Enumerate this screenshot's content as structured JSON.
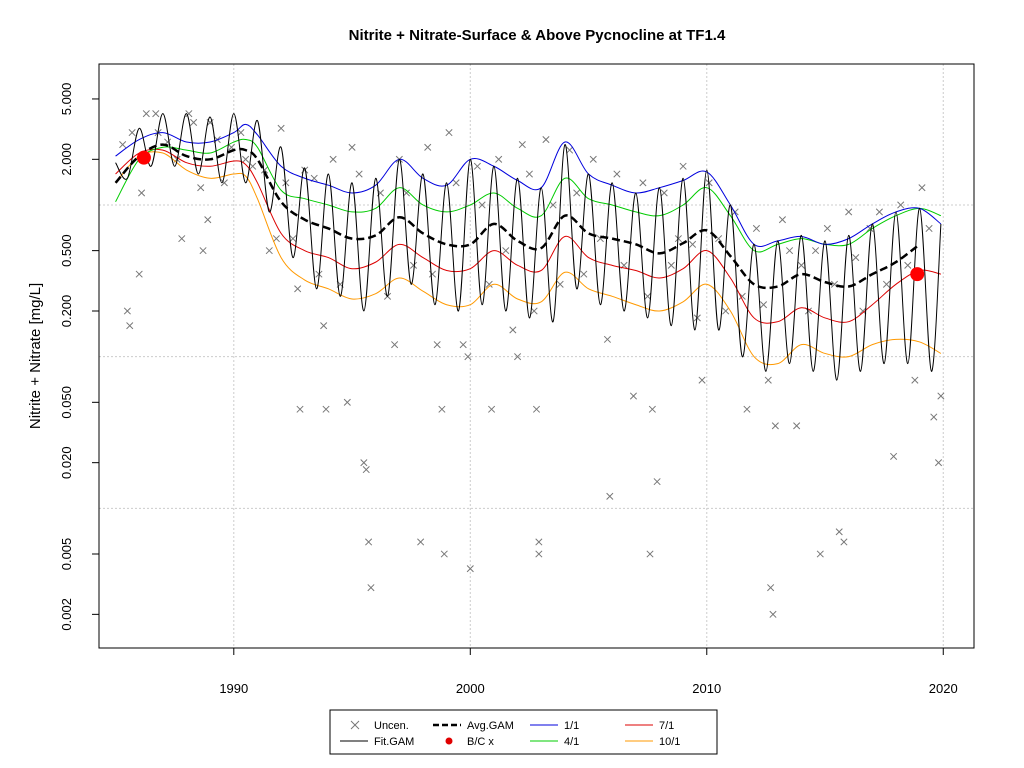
{
  "chart_data": {
    "type": "scatter",
    "title": "Nitrite + Nitrate-Surface & Above Pycnocline at TF1.4",
    "xlabel": "",
    "ylabel": "Nitrite + Nitrate [mg/L]",
    "xlim": [
      1984.3,
      2021.3
    ],
    "ylim": [
      0.0012,
      8.5
    ],
    "y_scale": "log",
    "x_ticks": [
      1990,
      2000,
      2010,
      2020
    ],
    "x_tick_labels": [
      "1990",
      "2000",
      "2010",
      "2020"
    ],
    "y_ticks": [
      0.002,
      0.005,
      0.02,
      0.05,
      0.2,
      0.5,
      2,
      5
    ],
    "y_tick_labels": [
      "0.002",
      "0.005",
      "0.020",
      "0.050",
      "0.200",
      "0.500",
      "2.000",
      "5.000"
    ],
    "grid": true,
    "grid_x": [
      1990,
      2000,
      2010,
      2020
    ],
    "grid_y": [
      0.01,
      0.1,
      1
    ],
    "legend_position": "bottom",
    "legend": [
      {
        "label": "Uncen.",
        "kind": "cross",
        "color": "#777777"
      },
      {
        "label": "Fit.GAM",
        "kind": "line",
        "color": "#000000"
      },
      {
        "label": "Avg.GAM",
        "kind": "dashed",
        "color": "#000000"
      },
      {
        "label": "B/C x",
        "kind": "dot",
        "color": "#e00000"
      },
      {
        "label": "1/1",
        "kind": "line",
        "color": "#0000dd"
      },
      {
        "label": "4/1",
        "kind": "line",
        "color": "#00cc00"
      },
      {
        "label": "7/1",
        "kind": "line",
        "color": "#dd0000"
      },
      {
        "label": "10/1",
        "kind": "line",
        "color": "#ff9900"
      }
    ],
    "colors": {
      "points": "#777777",
      "fit": "#000000",
      "avg": "#000000",
      "bc": "#ff0000",
      "jan": "#0000dd",
      "apr": "#00cc00",
      "jul": "#dd0000",
      "oct": "#ff9900",
      "grid": "#cccccc"
    },
    "x_range_series": [
      1985.0,
      2019.9
    ],
    "series": [
      {
        "name": "Avg.GAM",
        "x": [
          1985.0,
          1986.0,
          1987.0,
          1988.0,
          1989.0,
          1990.0,
          1990.5,
          1991.0,
          1992.0,
          1993.0,
          1994.0,
          1995.0,
          1996.0,
          1997.0,
          1998.0,
          1999.0,
          2000.0,
          2001.0,
          2002.0,
          2003.0,
          2004.0,
          2005.0,
          2006.0,
          2007.0,
          2008.0,
          2009.0,
          2010.0,
          2011.0,
          2012.0,
          2013.0,
          2014.0,
          2015.0,
          2016.0,
          2017.0,
          2018.0,
          2019.0
        ],
        "y": [
          1.4,
          2.1,
          2.5,
          2.1,
          2.0,
          2.3,
          2.3,
          2.0,
          1.05,
          0.8,
          0.7,
          0.6,
          0.63,
          0.83,
          0.65,
          0.55,
          0.55,
          0.75,
          0.58,
          0.52,
          0.85,
          0.65,
          0.6,
          0.55,
          0.48,
          0.56,
          0.68,
          0.46,
          0.3,
          0.29,
          0.35,
          0.31,
          0.29,
          0.35,
          0.42,
          0.55
        ]
      },
      {
        "name": "1/1",
        "x": [
          1985.0,
          1986.0,
          1987.0,
          1988.0,
          1989.0,
          1990.0,
          1990.5,
          1991.0,
          1992.0,
          1993.0,
          1994.0,
          1995.0,
          1996.0,
          1997.0,
          1998.0,
          1999.0,
          2000.0,
          2001.0,
          2002.0,
          2003.0,
          2004.0,
          2005.0,
          2006.0,
          2007.0,
          2008.0,
          2009.0,
          2010.0,
          2011.0,
          2012.0,
          2013.0,
          2014.0,
          2015.0,
          2016.0,
          2017.0,
          2018.0,
          2019.0,
          2019.9
        ],
        "y": [
          2.1,
          2.7,
          3.0,
          2.6,
          2.6,
          3.0,
          3.4,
          2.9,
          1.8,
          1.5,
          1.35,
          1.2,
          1.35,
          2.0,
          1.5,
          1.35,
          2.0,
          1.8,
          1.45,
          1.3,
          2.6,
          1.6,
          1.35,
          1.2,
          1.3,
          1.45,
          1.65,
          1.0,
          0.55,
          0.58,
          0.62,
          0.55,
          0.6,
          0.75,
          0.9,
          0.95,
          0.75
        ]
      },
      {
        "name": "4/1",
        "x": [
          1985.0,
          1986.0,
          1987.0,
          1988.0,
          1989.0,
          1990.0,
          1990.5,
          1991.0,
          1992.0,
          1993.0,
          1994.0,
          1995.0,
          1996.0,
          1997.0,
          1998.0,
          1999.0,
          2000.0,
          2001.0,
          2002.0,
          2003.0,
          2004.0,
          2005.0,
          2006.0,
          2007.0,
          2008.0,
          2009.0,
          2010.0,
          2011.0,
          2012.0,
          2013.0,
          2014.0,
          2015.0,
          2016.0,
          2017.0,
          2018.0,
          2019.0,
          2019.9
        ],
        "y": [
          1.05,
          2.0,
          2.4,
          2.3,
          2.2,
          2.6,
          2.7,
          2.4,
          1.25,
          1.1,
          1.0,
          0.9,
          0.95,
          1.3,
          1.0,
          0.9,
          1.0,
          1.2,
          0.95,
          0.85,
          1.5,
          1.1,
          1.0,
          0.9,
          0.85,
          1.0,
          1.3,
          0.85,
          0.5,
          0.55,
          0.6,
          0.55,
          0.55,
          0.7,
          0.85,
          0.95,
          0.85
        ]
      },
      {
        "name": "7/1",
        "x": [
          1985.0,
          1986.0,
          1987.0,
          1988.0,
          1989.0,
          1990.0,
          1990.5,
          1991.0,
          1992.0,
          1993.0,
          1994.0,
          1995.0,
          1996.0,
          1997.0,
          1998.0,
          1999.0,
          2000.0,
          2001.0,
          2002.0,
          2003.0,
          2004.0,
          2005.0,
          2006.0,
          2007.0,
          2008.0,
          2009.0,
          2010.0,
          2011.0,
          2012.0,
          2013.0,
          2014.0,
          2015.0,
          2016.0,
          2017.0,
          2018.0,
          2019.0,
          2019.9
        ],
        "y": [
          1.6,
          2.2,
          2.3,
          1.9,
          1.8,
          1.95,
          1.85,
          1.4,
          0.65,
          0.5,
          0.45,
          0.38,
          0.42,
          0.55,
          0.45,
          0.37,
          0.38,
          0.5,
          0.4,
          0.37,
          0.62,
          0.45,
          0.4,
          0.37,
          0.33,
          0.38,
          0.5,
          0.33,
          0.18,
          0.17,
          0.21,
          0.18,
          0.17,
          0.22,
          0.3,
          0.37,
          0.35
        ]
      },
      {
        "name": "10/1",
        "x": [
          1985.0,
          1986.0,
          1987.0,
          1988.0,
          1989.0,
          1990.0,
          1990.5,
          1991.0,
          1992.0,
          1993.0,
          1994.0,
          1995.0,
          1996.0,
          1997.0,
          1998.0,
          1999.0,
          2000.0,
          2001.0,
          2002.0,
          2003.0,
          2004.0,
          2005.0,
          2006.0,
          2007.0,
          2008.0,
          2009.0,
          2010.0,
          2011.0,
          2012.0,
          2013.0,
          2014.0,
          2015.0,
          2016.0,
          2017.0,
          2018.0,
          2019.0,
          2019.9
        ],
        "y": [
          1.4,
          2.1,
          2.2,
          1.7,
          1.5,
          1.6,
          1.55,
          1.1,
          0.45,
          0.32,
          0.28,
          0.24,
          0.26,
          0.33,
          0.27,
          0.22,
          0.22,
          0.3,
          0.24,
          0.23,
          0.36,
          0.28,
          0.25,
          0.22,
          0.2,
          0.23,
          0.3,
          0.2,
          0.1,
          0.09,
          0.12,
          0.105,
          0.1,
          0.12,
          0.13,
          0.125,
          0.105
        ]
      },
      {
        "name": "Fit.GAM",
        "amplitude_note": "seasonal",
        "x": [
          1985.0,
          1985.5,
          1986.0,
          1986.5,
          1987.0,
          1987.5,
          1988.0,
          1988.5,
          1989.0,
          1989.5,
          1990.0,
          1990.5,
          1991.0,
          1991.5,
          1992.0,
          1992.5,
          1993.0,
          1993.5,
          1994.0,
          1994.5,
          1995.0,
          1995.5,
          1996.0,
          1996.5,
          1997.0,
          1997.5,
          1998.0,
          1998.5,
          1999.0,
          1999.5,
          2000.0,
          2000.5,
          2001.0,
          2001.5,
          2002.0,
          2002.5,
          2003.0,
          2003.5,
          2004.0,
          2004.5,
          2005.0,
          2005.5,
          2006.0,
          2006.5,
          2007.0,
          2007.5,
          2008.0,
          2008.5,
          2009.0,
          2009.5,
          2010.0,
          2010.5,
          2011.0,
          2011.5,
          2012.0,
          2012.5,
          2013.0,
          2013.5,
          2014.0,
          2014.5,
          2015.0,
          2015.5,
          2016.0,
          2016.5,
          2017.0,
          2017.5,
          2018.0,
          2018.5,
          2019.0,
          2019.5,
          2019.9
        ],
        "y": [
          1.9,
          1.5,
          3.2,
          1.8,
          4.0,
          1.8,
          4.0,
          1.6,
          3.8,
          1.4,
          4.0,
          1.4,
          3.6,
          0.9,
          2.4,
          0.45,
          1.75,
          0.28,
          1.6,
          0.25,
          1.4,
          0.2,
          1.5,
          0.25,
          2.0,
          0.3,
          1.6,
          0.22,
          1.4,
          0.2,
          2.0,
          0.22,
          1.8,
          0.2,
          1.5,
          0.18,
          1.3,
          0.17,
          2.5,
          0.28,
          1.6,
          0.22,
          1.4,
          0.2,
          1.2,
          0.18,
          1.3,
          0.16,
          1.5,
          0.15,
          1.7,
          0.15,
          1.0,
          0.1,
          0.55,
          0.08,
          0.58,
          0.09,
          0.63,
          0.08,
          0.58,
          0.07,
          0.63,
          0.08,
          0.75,
          0.09,
          0.9,
          0.09,
          0.95,
          0.08,
          0.75
        ]
      }
    ],
    "bc_points": [
      {
        "x": 1986.2,
        "y": 2.05
      },
      {
        "x": 2018.9,
        "y": 0.35
      }
    ],
    "uncensored_points": [
      [
        1985.3,
        2.5
      ],
      [
        1985.5,
        0.2
      ],
      [
        1985.6,
        0.16
      ],
      [
        1985.7,
        3.0
      ],
      [
        1986.0,
        0.35
      ],
      [
        1986.1,
        1.2
      ],
      [
        1986.3,
        4.0
      ],
      [
        1986.7,
        4.0
      ],
      [
        1986.8,
        3.0
      ],
      [
        1987.2,
        2.6
      ],
      [
        1987.6,
        2.0
      ],
      [
        1987.8,
        0.6
      ],
      [
        1988.1,
        4.0
      ],
      [
        1988.3,
        3.5
      ],
      [
        1988.6,
        1.3
      ],
      [
        1988.7,
        0.5
      ],
      [
        1988.9,
        0.8
      ],
      [
        1989.0,
        3.5
      ],
      [
        1989.3,
        2.7
      ],
      [
        1989.6,
        1.4
      ],
      [
        1989.9,
        2.4
      ],
      [
        1990.3,
        3.0
      ],
      [
        1990.5,
        2.0
      ],
      [
        1990.8,
        1.8
      ],
      [
        1991.3,
        1.7
      ],
      [
        1991.5,
        0.5
      ],
      [
        1991.8,
        0.6
      ],
      [
        1992.0,
        3.2
      ],
      [
        1992.2,
        1.4
      ],
      [
        1992.5,
        0.6
      ],
      [
        1992.7,
        0.28
      ],
      [
        1992.8,
        0.045
      ],
      [
        1993.0,
        1.7
      ],
      [
        1993.4,
        1.5
      ],
      [
        1993.6,
        0.35
      ],
      [
        1993.8,
        0.16
      ],
      [
        1993.9,
        0.045
      ],
      [
        1994.2,
        2.0
      ],
      [
        1994.5,
        0.3
      ],
      [
        1994.8,
        0.05
      ],
      [
        1995.0,
        2.4
      ],
      [
        1995.3,
        1.6
      ],
      [
        1995.5,
        0.02
      ],
      [
        1995.6,
        0.018
      ],
      [
        1995.7,
        0.006
      ],
      [
        1995.8,
        0.003
      ],
      [
        1996.2,
        1.2
      ],
      [
        1996.5,
        0.25
      ],
      [
        1996.8,
        0.12
      ],
      [
        1997.0,
        2.0
      ],
      [
        1997.3,
        1.2
      ],
      [
        1997.6,
        0.4
      ],
      [
        1997.9,
        0.006
      ],
      [
        1998.2,
        2.4
      ],
      [
        1998.4,
        0.35
      ],
      [
        1998.6,
        0.12
      ],
      [
        1998.8,
        0.045
      ],
      [
        1998.9,
        0.005
      ],
      [
        1999.1,
        3.0
      ],
      [
        1999.4,
        1.4
      ],
      [
        1999.7,
        0.12
      ],
      [
        1999.9,
        0.1
      ],
      [
        2000.0,
        0.004
      ],
      [
        2000.3,
        1.8
      ],
      [
        2000.5,
        1.0
      ],
      [
        2000.8,
        0.3
      ],
      [
        2000.9,
        0.045
      ],
      [
        2001.2,
        2.0
      ],
      [
        2001.5,
        0.5
      ],
      [
        2001.8,
        0.15
      ],
      [
        2002.0,
        0.1
      ],
      [
        2002.2,
        2.5
      ],
      [
        2002.5,
        1.6
      ],
      [
        2002.7,
        0.2
      ],
      [
        2002.8,
        0.045
      ],
      [
        2002.9,
        0.006
      ],
      [
        2002.9,
        0.005
      ],
      [
        2003.2,
        2.7
      ],
      [
        2003.5,
        1.0
      ],
      [
        2003.8,
        0.3
      ],
      [
        2004.2,
        2.3
      ],
      [
        2004.5,
        1.2
      ],
      [
        2004.8,
        0.35
      ],
      [
        2005.2,
        2.0
      ],
      [
        2005.5,
        0.6
      ],
      [
        2005.8,
        0.13
      ],
      [
        2005.9,
        0.012
      ],
      [
        2006.2,
        1.6
      ],
      [
        2006.5,
        0.4
      ],
      [
        2006.9,
        0.055
      ],
      [
        2007.3,
        1.4
      ],
      [
        2007.5,
        0.25
      ],
      [
        2007.6,
        0.005
      ],
      [
        2007.7,
        0.045
      ],
      [
        2007.9,
        0.015
      ],
      [
        2008.2,
        1.2
      ],
      [
        2008.5,
        0.4
      ],
      [
        2008.8,
        0.6
      ],
      [
        2009.0,
        1.8
      ],
      [
        2009.4,
        0.55
      ],
      [
        2009.6,
        0.18
      ],
      [
        2009.8,
        0.07
      ],
      [
        2010.1,
        1.4
      ],
      [
        2010.5,
        0.6
      ],
      [
        2010.8,
        0.2
      ],
      [
        2011.2,
        0.9
      ],
      [
        2011.5,
        0.25
      ],
      [
        2011.7,
        0.045
      ],
      [
        2012.1,
        0.7
      ],
      [
        2012.4,
        0.22
      ],
      [
        2012.6,
        0.07
      ],
      [
        2012.7,
        0.003
      ],
      [
        2012.8,
        0.002
      ],
      [
        2012.9,
        0.035
      ],
      [
        2013.2,
        0.8
      ],
      [
        2013.5,
        0.5
      ],
      [
        2013.8,
        0.035
      ],
      [
        2014.0,
        0.4
      ],
      [
        2014.3,
        0.2
      ],
      [
        2014.6,
        0.5
      ],
      [
        2014.8,
        0.005
      ],
      [
        2015.1,
        0.7
      ],
      [
        2015.4,
        0.3
      ],
      [
        2015.6,
        0.007
      ],
      [
        2015.8,
        0.006
      ],
      [
        2016.0,
        0.9
      ],
      [
        2016.3,
        0.45
      ],
      [
        2016.6,
        0.2
      ],
      [
        2016.9,
        0.7
      ],
      [
        2017.3,
        0.9
      ],
      [
        2017.6,
        0.3
      ],
      [
        2017.9,
        0.022
      ],
      [
        2018.2,
        1.0
      ],
      [
        2018.5,
        0.4
      ],
      [
        2018.8,
        0.07
      ],
      [
        2019.1,
        1.3
      ],
      [
        2019.4,
        0.7
      ],
      [
        2019.6,
        0.04
      ],
      [
        2019.8,
        0.02
      ],
      [
        2019.9,
        0.055
      ]
    ]
  }
}
